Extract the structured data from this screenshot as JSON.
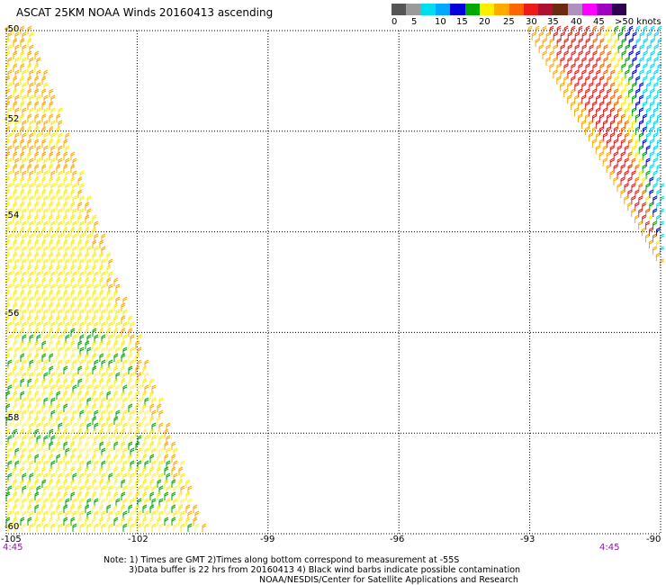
{
  "title": "ASCAT 25KM NOAA Winds 20160413 ascending",
  "legend": {
    "labels": [
      "0",
      "5",
      "10",
      "15",
      "20",
      "25",
      "30",
      "35",
      "40",
      "45",
      ">50 knots"
    ],
    "colors": [
      "#555555",
      "#9a9a9a",
      "#00ddf0",
      "#00a8ff",
      "#0000dd",
      "#00aa00",
      "#ffee00",
      "#ffaa00",
      "#ff6600",
      "#ee1a1a",
      "#b01030",
      "#6a2a10",
      "#b090c0",
      "#ff00ff",
      "#a000c0",
      "#300050"
    ]
  },
  "axes": {
    "x_ticks": [
      "-105",
      "-102",
      "-99",
      "-96",
      "-93",
      "-90"
    ],
    "y_ticks": [
      "-50",
      "-52",
      "-54",
      "-56",
      "-58",
      "-60"
    ]
  },
  "times": {
    "left": "4:45",
    "right": "4:45"
  },
  "notes": [
    "Note: 1) Times are GMT 2)Times along bottom correspond to measurement at -55S",
    "3)Data buffer is 22 hrs from 20160413 4) Black wind barbs indicate possible contamination",
    "NOAA/NESDIS/Center for Satellite Applications and Research"
  ],
  "chart_data": {
    "type": "wind_barb_map",
    "x_range": [
      -105,
      -90
    ],
    "y_range": [
      -60,
      -50
    ],
    "swaths": [
      {
        "name": "west swath",
        "lon_edges_at_lat_-50": [
          -105,
          -104.2
        ],
        "lon_edges_at_lat_-60": [
          -105,
          -101.0
        ],
        "dominant_speed_knots": "20-25",
        "colors": [
          "#ffee00",
          "#ffaa00",
          "#00aa00"
        ]
      },
      {
        "name": "east swath",
        "lon_edges_at_lat_-50": [
          -93.1,
          -90
        ],
        "lon_edges_at_lat_-55": [
          -90,
          -90
        ],
        "dominant_speed_knots": "25-35",
        "colors": [
          "#ee1a1a",
          "#ff6600",
          "#ffaa00",
          "#ffee00",
          "#00aa00",
          "#0000dd",
          "#00ddf0"
        ]
      }
    ]
  }
}
